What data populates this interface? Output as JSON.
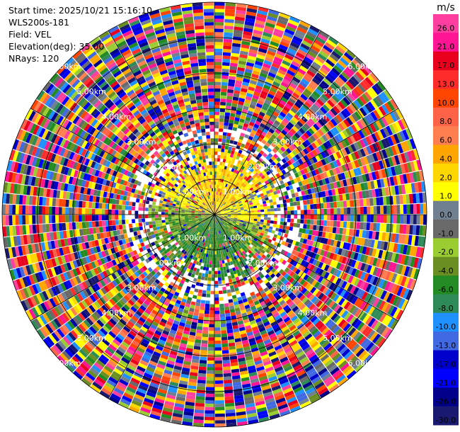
{
  "header": {
    "start_time": "Start time: 2025/10/21 15:16:10",
    "instrument": "WLS200s-181",
    "field": "Field: VEL",
    "elevation": "Elevation(deg): 35.00",
    "nrays": "NRays: 120"
  },
  "chart_data": {
    "type": "heatmap",
    "projection": "polar-ppi",
    "n_rays": 120,
    "field": "VEL",
    "elevation_deg": 35.0,
    "max_range_km": 6.0,
    "range_rings_km": [
      1,
      2,
      3,
      4,
      5,
      6
    ],
    "ring_labels": [
      "1.00km",
      "2.00km",
      "3.00km",
      "4.00km",
      "5.00km",
      "6.00km"
    ],
    "colorbar": {
      "unit": "m/s",
      "ticks": [
        "26.0",
        "21.0",
        "17.0",
        "13.0",
        "10.0",
        "8.0",
        "6.0",
        "4.0",
        "2.0",
        "1.0",
        "0.0",
        "-1.0",
        "-2.0",
        "-4.0",
        "-6.0",
        "-8.0",
        "-10.0",
        "-13.0",
        "-17.0",
        "-21.0",
        "-26.0",
        "-30.0"
      ],
      "colors": [
        "#ff3fa0",
        "#ff1493",
        "#e8001e",
        "#ff2c2c",
        "#ff4500",
        "#ff6347",
        "#ff7f50",
        "#ffa500",
        "#ffd700",
        "#ffff00",
        "#708090",
        "#696969",
        "#9acd32",
        "#6b8e23",
        "#228b22",
        "#2e8b57",
        "#1e90ff",
        "#4169e1",
        "#0000cd",
        "#0000ff",
        "#00008b",
        "#191970"
      ]
    },
    "grid": true
  }
}
